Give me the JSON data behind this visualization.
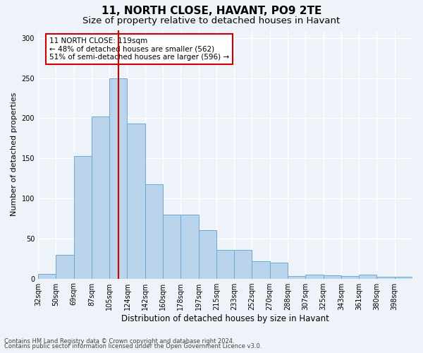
{
  "title": "11, NORTH CLOSE, HAVANT, PO9 2TE",
  "subtitle": "Size of property relative to detached houses in Havant",
  "xlabel": "Distribution of detached houses by size in Havant",
  "ylabel": "Number of detached properties",
  "footer_line1": "Contains HM Land Registry data © Crown copyright and database right 2024.",
  "footer_line2": "Contains public sector information licensed under the Open Government Licence v3.0.",
  "bin_labels": [
    "32sqm",
    "50sqm",
    "69sqm",
    "87sqm",
    "105sqm",
    "124sqm",
    "142sqm",
    "160sqm",
    "178sqm",
    "197sqm",
    "215sqm",
    "233sqm",
    "252sqm",
    "270sqm",
    "288sqm",
    "307sqm",
    "325sqm",
    "343sqm",
    "361sqm",
    "380sqm",
    "398sqm"
  ],
  "bar_values": [
    6,
    30,
    153,
    202,
    250,
    193,
    118,
    80,
    80,
    60,
    36,
    36,
    22,
    20,
    3,
    5,
    4,
    3,
    5,
    2,
    2
  ],
  "bar_color": "#bad4ec",
  "bar_edgecolor": "#6aaad4",
  "property_size_index": 4.5,
  "vline_color": "#cc0000",
  "annotation_text": "11 NORTH CLOSE: 119sqm\n← 48% of detached houses are smaller (562)\n51% of semi-detached houses are larger (596) →",
  "annotation_boxcolor": "white",
  "annotation_edgecolor": "#cc0000",
  "ylim": [
    0,
    310
  ],
  "yticks": [
    0,
    50,
    100,
    150,
    200,
    250,
    300
  ],
  "background_color": "#eef2f9",
  "grid_color": "white",
  "title_fontsize": 11,
  "subtitle_fontsize": 9.5,
  "ylabel_fontsize": 8,
  "xlabel_fontsize": 8.5,
  "tick_fontsize": 7,
  "footer_fontsize": 6
}
